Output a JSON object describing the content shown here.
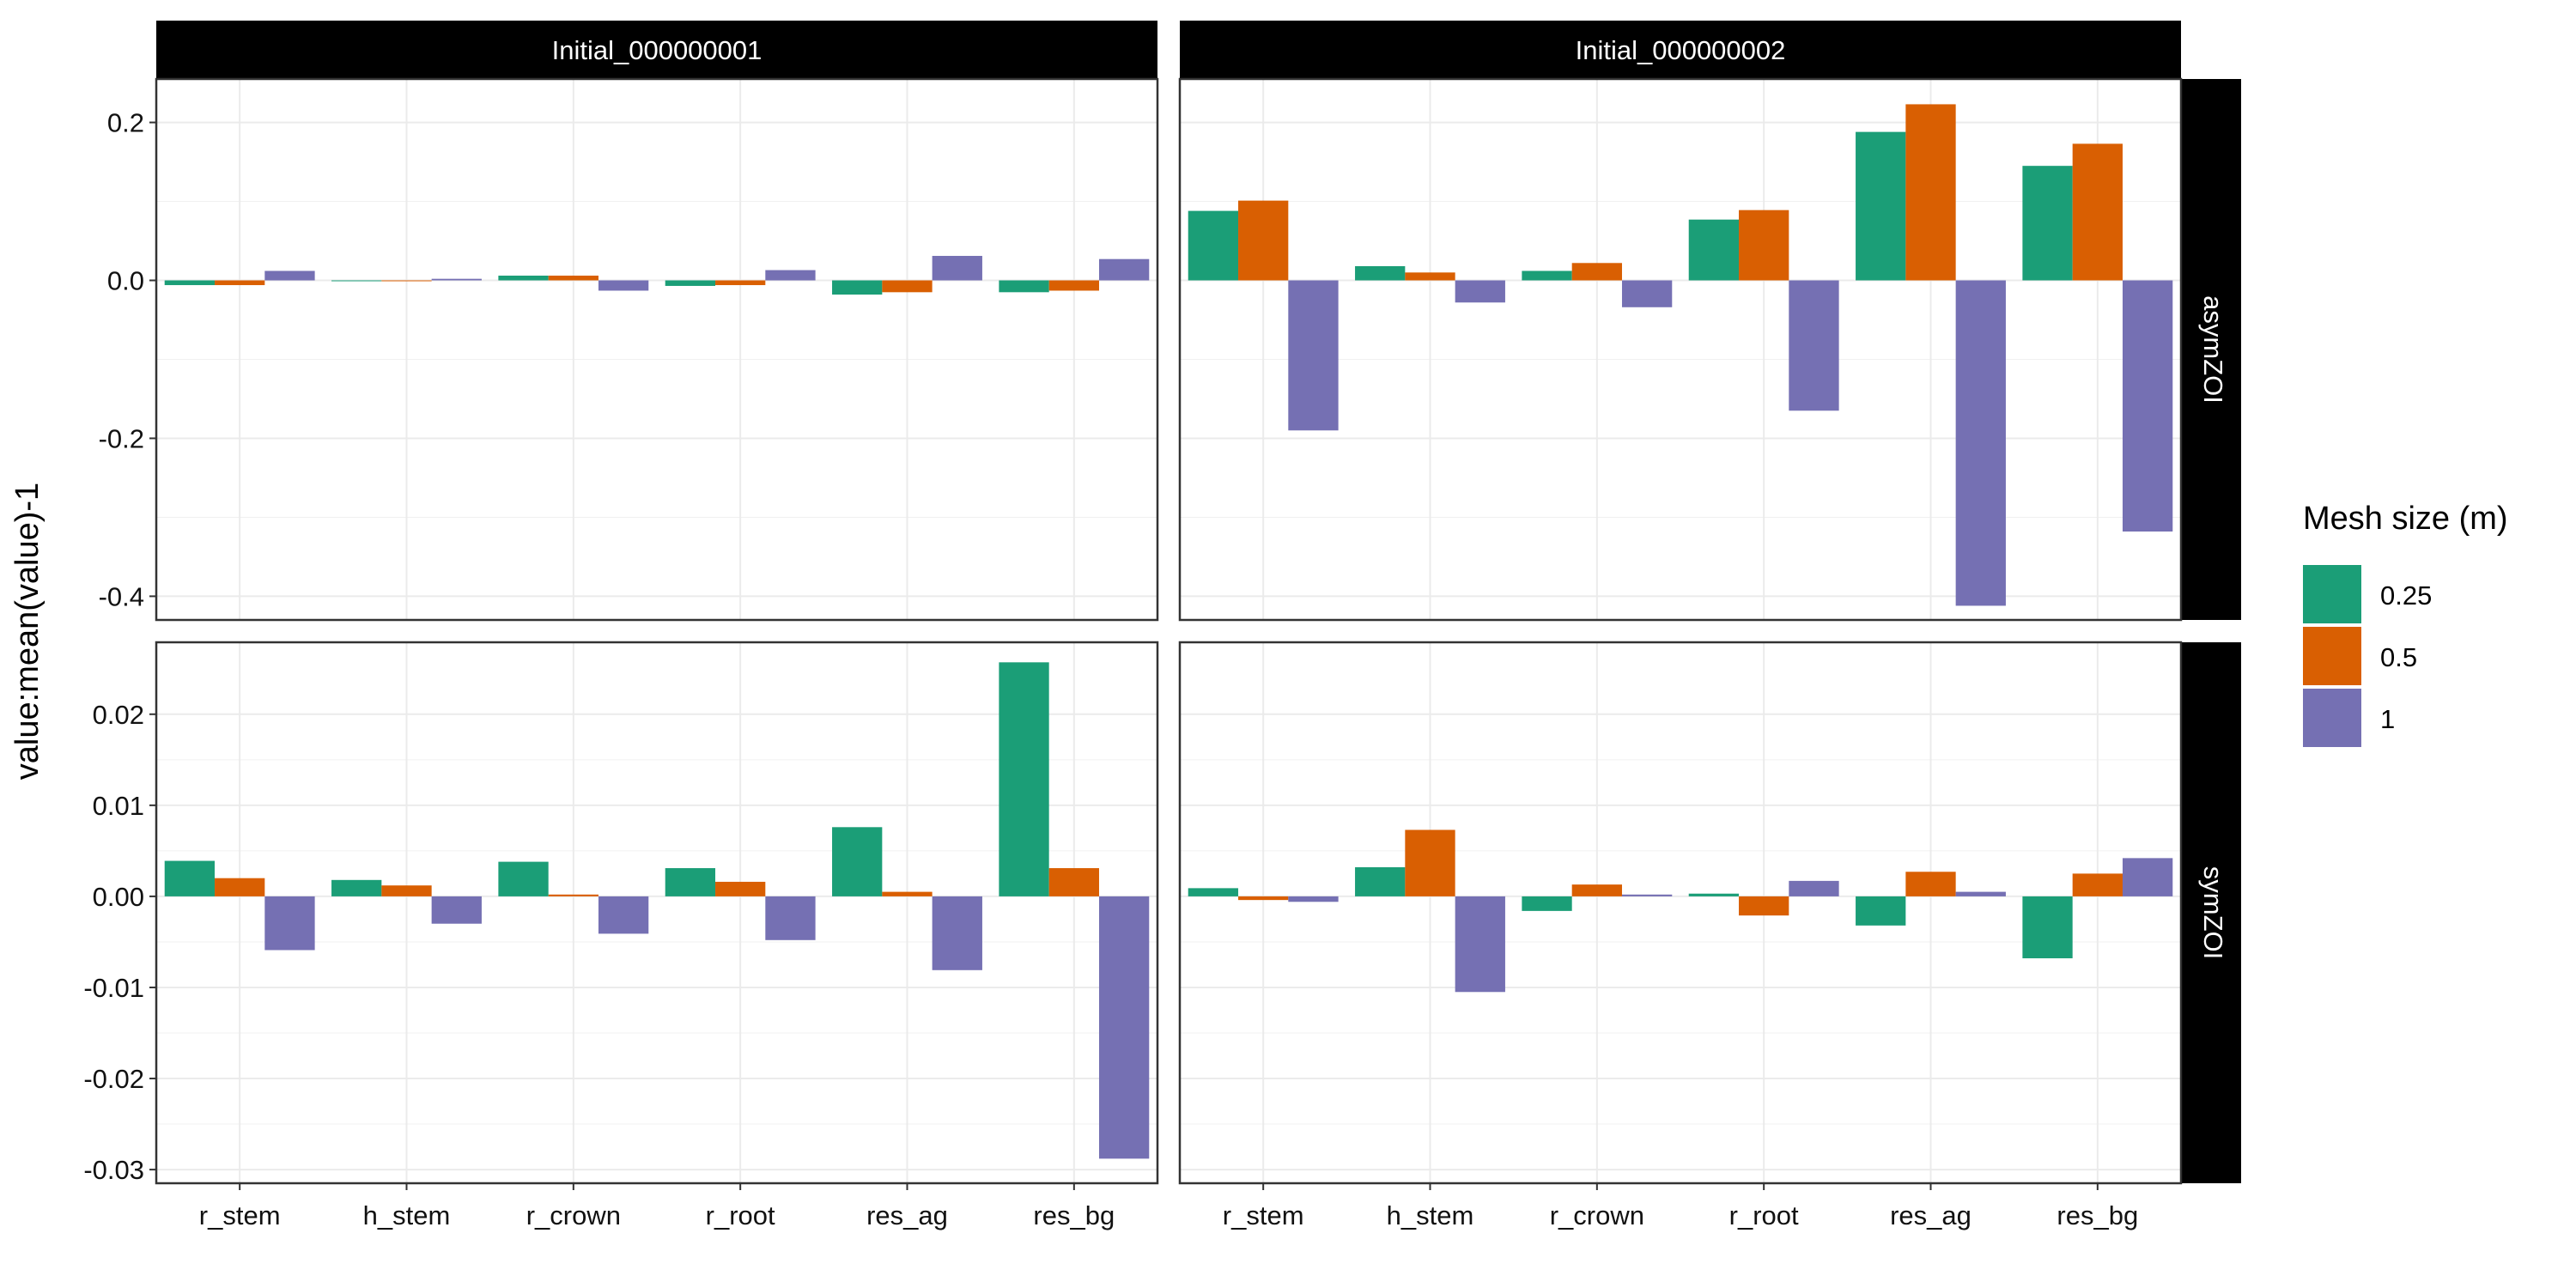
{
  "chart_data": {
    "type": "bar",
    "facet_layout": "grid",
    "ylabel": "value:mean(value)-1",
    "xlabel": "",
    "categories": [
      "r_stem",
      "h_stem",
      "r_crown",
      "r_root",
      "res_ag",
      "res_bg"
    ],
    "column_strips": [
      "Initial_000000001",
      "Initial_000000002"
    ],
    "row_strips": [
      "asymZOI",
      "symZOI"
    ],
    "grid": true,
    "scales": "free_y per row",
    "legend": {
      "title": "Mesh size (m)",
      "placement": "right",
      "entries": [
        "0.25",
        "0.5",
        "1"
      ],
      "colors": [
        "#1B9E77",
        "#D95F02",
        "#7570B3"
      ]
    },
    "rows": [
      {
        "strip": "asymZOI",
        "ylim": [
          -0.43,
          0.255
        ],
        "yticks": [
          -0.4,
          -0.2,
          0.0,
          0.2
        ],
        "ytick_labels": [
          "-0.4",
          "-0.2",
          "0.0",
          "0.2"
        ],
        "panels": [
          {
            "strip": "Initial_000000001",
            "series": [
              {
                "name": "0.25",
                "values": [
                  -0.006,
                  -0.001,
                  0.006,
                  -0.007,
                  -0.018,
                  -0.015
                ]
              },
              {
                "name": "0.5",
                "values": [
                  -0.006,
                  -0.001,
                  0.006,
                  -0.006,
                  -0.015,
                  -0.013
                ]
              },
              {
                "name": "1",
                "values": [
                  0.012,
                  0.002,
                  -0.013,
                  0.013,
                  0.031,
                  0.027
                ]
              }
            ]
          },
          {
            "strip": "Initial_000000002",
            "series": [
              {
                "name": "0.25",
                "values": [
                  0.088,
                  0.018,
                  0.012,
                  0.077,
                  0.188,
                  0.145
                ]
              },
              {
                "name": "0.5",
                "values": [
                  0.101,
                  0.01,
                  0.022,
                  0.089,
                  0.223,
                  0.173
                ]
              },
              {
                "name": "1",
                "values": [
                  -0.19,
                  -0.028,
                  -0.034,
                  -0.165,
                  -0.412,
                  -0.318
                ]
              }
            ]
          }
        ]
      },
      {
        "strip": "symZOI",
        "ylim": [
          -0.0315,
          0.0279
        ],
        "yticks": [
          -0.03,
          -0.02,
          -0.01,
          0.0,
          0.01,
          0.02
        ],
        "ytick_labels": [
          "-0.03",
          "-0.02",
          "-0.01",
          "0.00",
          "0.01",
          "0.02"
        ],
        "panels": [
          {
            "strip": "Initial_000000001",
            "series": [
              {
                "name": "0.25",
                "values": [
                  0.0039,
                  0.0018,
                  0.0038,
                  0.0031,
                  0.0076,
                  0.0257
                ]
              },
              {
                "name": "0.5",
                "values": [
                  0.002,
                  0.0012,
                  0.0002,
                  0.0016,
                  0.0005,
                  0.0031
                ]
              },
              {
                "name": "1",
                "values": [
                  -0.0059,
                  -0.003,
                  -0.0041,
                  -0.0048,
                  -0.0081,
                  -0.0288
                ]
              }
            ]
          },
          {
            "strip": "Initial_000000002",
            "series": [
              {
                "name": "0.25",
                "values": [
                  0.0009,
                  0.0032,
                  -0.0016,
                  0.0003,
                  -0.0032,
                  -0.0068
                ]
              },
              {
                "name": "0.5",
                "values": [
                  -0.0004,
                  0.0073,
                  0.0013,
                  -0.0021,
                  0.0027,
                  0.0025
                ]
              },
              {
                "name": "1",
                "values": [
                  -0.0006,
                  -0.0105,
                  0.0002,
                  0.0017,
                  0.0005,
                  0.0042
                ]
              }
            ]
          }
        ]
      }
    ]
  }
}
